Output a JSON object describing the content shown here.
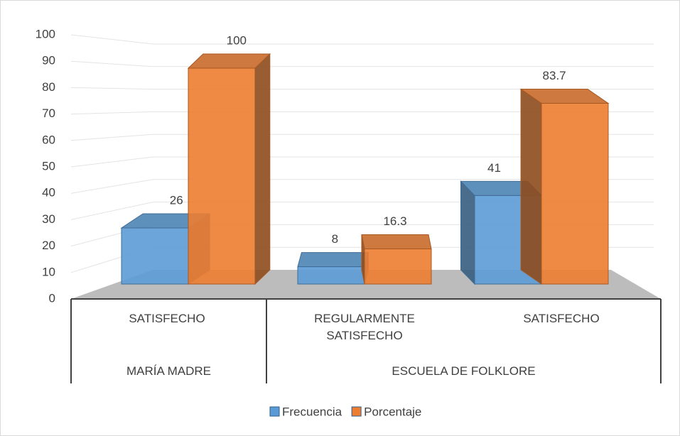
{
  "chart_data": {
    "type": "bar3d",
    "groups": [
      {
        "name": "MARÍA MADRE",
        "categories": [
          "SATISFECHO"
        ]
      },
      {
        "name": "ESCUELA DE FOLKLORE",
        "categories": [
          "REGULARMENTE SATISFECHO",
          "SATISFECHO"
        ]
      }
    ],
    "series": [
      {
        "name": "Frecuencia",
        "color": "#5b9bd5",
        "values": [
          26,
          8,
          41
        ]
      },
      {
        "name": "Porcentaje",
        "color": "#ed7d31",
        "values": [
          100,
          16.3,
          83.7
        ]
      }
    ],
    "ylim": [
      0,
      100
    ],
    "yticks": [
      0,
      10,
      20,
      30,
      40,
      50,
      60,
      70,
      80,
      90,
      100
    ],
    "grid": true,
    "legend": "bottom"
  }
}
